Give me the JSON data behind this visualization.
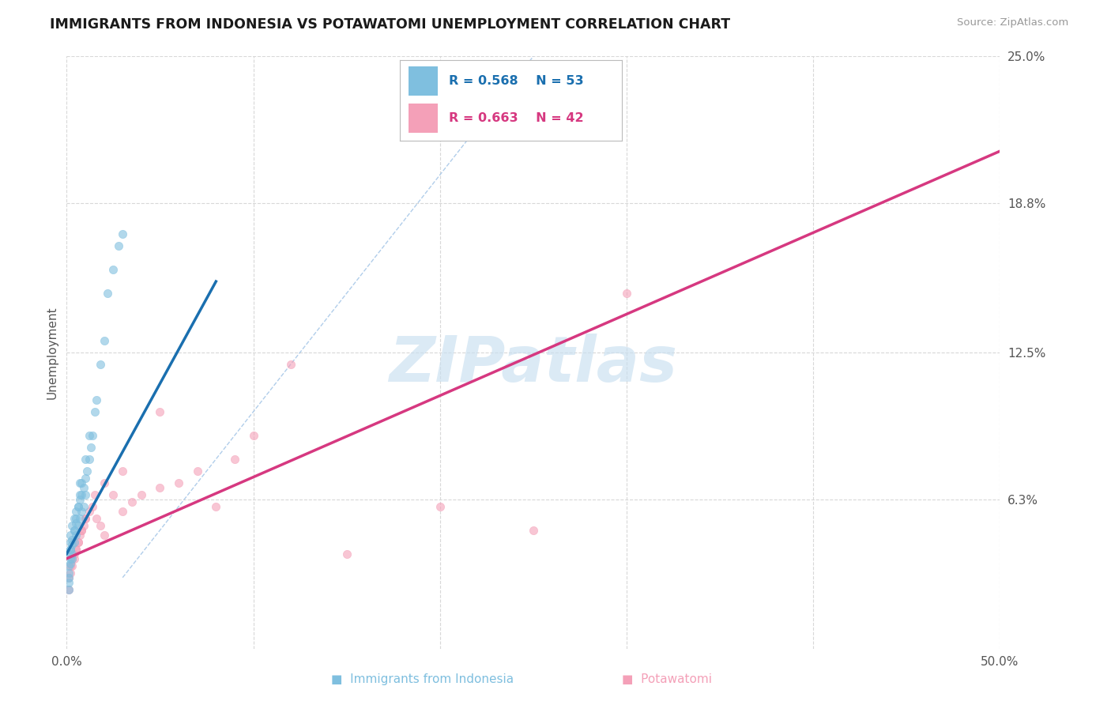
{
  "title": "IMMIGRANTS FROM INDONESIA VS POTAWATOMI UNEMPLOYMENT CORRELATION CHART",
  "source_text": "Source: ZipAtlas.com",
  "ylabel": "Unemployment",
  "xlim": [
    0.0,
    0.5
  ],
  "ylim": [
    0.0,
    0.25
  ],
  "xtick_positions": [
    0.0,
    0.1,
    0.2,
    0.3,
    0.4,
    0.5
  ],
  "xticklabels": [
    "0.0%",
    "",
    "",
    "",
    "",
    "50.0%"
  ],
  "ytick_positions": [
    0.063,
    0.125,
    0.188,
    0.25
  ],
  "ytick_labels": [
    "6.3%",
    "12.5%",
    "18.8%",
    "25.0%"
  ],
  "legend_r1": "R = 0.568",
  "legend_n1": "N = 53",
  "legend_r2": "R = 0.663",
  "legend_n2": "N = 42",
  "blue_color": "#7fbfdf",
  "pink_color": "#f4a0b8",
  "trend_blue": "#1a6faf",
  "trend_pink": "#d63880",
  "diagonal_color": "#a8c8e8",
  "watermark": "ZIPatlas",
  "watermark_color": "#c8dff0",
  "grid_color": "#d8d8d8",
  "blue_scatter_x": [
    0.001,
    0.001,
    0.001,
    0.001,
    0.002,
    0.002,
    0.002,
    0.002,
    0.003,
    0.003,
    0.003,
    0.004,
    0.004,
    0.004,
    0.005,
    0.005,
    0.005,
    0.006,
    0.006,
    0.007,
    0.007,
    0.007,
    0.008,
    0.008,
    0.009,
    0.009,
    0.01,
    0.01,
    0.011,
    0.012,
    0.013,
    0.014,
    0.015,
    0.016,
    0.018,
    0.02,
    0.022,
    0.025,
    0.028,
    0.03,
    0.001,
    0.001,
    0.002,
    0.002,
    0.003,
    0.003,
    0.004,
    0.005,
    0.006,
    0.007,
    0.008,
    0.01,
    0.012
  ],
  "blue_scatter_y": [
    0.025,
    0.03,
    0.035,
    0.04,
    0.038,
    0.042,
    0.045,
    0.048,
    0.04,
    0.044,
    0.052,
    0.045,
    0.05,
    0.055,
    0.048,
    0.053,
    0.058,
    0.052,
    0.06,
    0.055,
    0.063,
    0.07,
    0.058,
    0.065,
    0.06,
    0.068,
    0.065,
    0.072,
    0.075,
    0.08,
    0.085,
    0.09,
    0.1,
    0.105,
    0.12,
    0.13,
    0.15,
    0.16,
    0.17,
    0.175,
    0.028,
    0.032,
    0.036,
    0.042,
    0.038,
    0.046,
    0.05,
    0.055,
    0.06,
    0.065,
    0.07,
    0.08,
    0.09
  ],
  "pink_scatter_x": [
    0.001,
    0.002,
    0.003,
    0.004,
    0.005,
    0.006,
    0.007,
    0.008,
    0.009,
    0.01,
    0.012,
    0.014,
    0.016,
    0.018,
    0.02,
    0.025,
    0.03,
    0.035,
    0.04,
    0.05,
    0.06,
    0.07,
    0.08,
    0.09,
    0.1,
    0.12,
    0.15,
    0.2,
    0.25,
    0.3,
    0.001,
    0.002,
    0.003,
    0.004,
    0.005,
    0.006,
    0.008,
    0.01,
    0.015,
    0.02,
    0.03,
    0.05
  ],
  "pink_scatter_y": [
    0.03,
    0.035,
    0.038,
    0.04,
    0.042,
    0.045,
    0.048,
    0.05,
    0.052,
    0.055,
    0.058,
    0.06,
    0.055,
    0.052,
    0.048,
    0.065,
    0.058,
    0.062,
    0.065,
    0.068,
    0.07,
    0.075,
    0.06,
    0.08,
    0.09,
    0.12,
    0.04,
    0.06,
    0.05,
    0.15,
    0.025,
    0.032,
    0.035,
    0.038,
    0.042,
    0.045,
    0.05,
    0.055,
    0.065,
    0.07,
    0.075,
    0.1
  ],
  "blue_trend_x0": 0.0,
  "blue_trend_y0": 0.04,
  "blue_trend_x1": 0.08,
  "blue_trend_y1": 0.155,
  "pink_trend_x0": 0.0,
  "pink_trend_y0": 0.038,
  "pink_trend_x1": 0.5,
  "pink_trend_y1": 0.21
}
